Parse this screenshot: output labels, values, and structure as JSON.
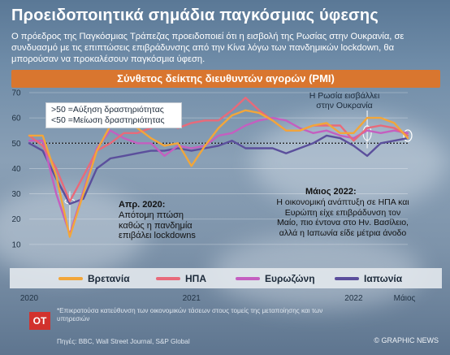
{
  "title": "Προειδοποιητικά σημάδια παγκόσμιας ύφεσης",
  "subtitle": "Ο πρόεδρος της Παγκόσμιας Τράπεζας προειδοποιεί ότι η εισβολή της Ρωσίας στην  Ουκρανία, σε συνδυασμό με τις επιπτώσεις επιβράδυνσης από την Κίνα λόγω των πανδημικών lockdown, θα μπορούσαν να προκαλέσουν παγκόσμια ύφεση.",
  "colors": {
    "uk": "#f2a63a",
    "us": "#e86a7a",
    "eu": "#c45fc0",
    "jp": "#5b4f9c",
    "banner": "#d9762f"
  },
  "annotations": {
    "threshold_up": ">50 =Αύξηση δραστηριότητας",
    "threshold_down": "<50 =Μείωση δραστηριότητας",
    "invasion": "Η Ρωσία εισβάλλει στην Ουκρανία",
    "apr2020_title": "Απρ. 2020:",
    "apr2020_body": "Απότομη πτώση καθώς η πανδημία επιβάλει lockdowns",
    "may2022_title": "Μάιος 2022:",
    "may2022_body": "Η οικονομική ανάπτυξη σε ΗΠΑ και Ευρώπη είχε επιβράδυνση τον Μαίο, πιο έντονα στο Ην. Βασίλειο, αλλά η Ιαπωνία είδε μέτρια άνοδο"
  },
  "footnote": "*Επικρατούσα κατεύθυνση των οικονομικών τάσεων στους τομείς της μεταποίησης και των υπηρεσιών",
  "source": "Πηγές: BBC, Wall Street Journal, S&P Global",
  "credit": "© GRAPHIC NEWS",
  "logo": "OT",
  "chart_data": {
    "type": "line",
    "title": "Σύνθετος δείκτης διευθυντών αγορών (PMI)",
    "ylim": [
      0,
      70
    ],
    "yticks": [
      10,
      20,
      30,
      40,
      50,
      60,
      70
    ],
    "xticks": [
      "2020",
      "2021",
      "2022",
      "Μάιος"
    ],
    "threshold": 50,
    "x": [
      "2020-01",
      "2020-02",
      "2020-03",
      "2020-04",
      "2020-05",
      "2020-06",
      "2020-07",
      "2020-08",
      "2020-09",
      "2020-10",
      "2020-11",
      "2020-12",
      "2021-01",
      "2021-02",
      "2021-03",
      "2021-04",
      "2021-05",
      "2021-06",
      "2021-07",
      "2021-08",
      "2021-09",
      "2021-10",
      "2021-11",
      "2021-12",
      "2022-01",
      "2022-02",
      "2022-03",
      "2022-04",
      "2022-05"
    ],
    "series": [
      {
        "name": "Βρετανία",
        "key": "uk",
        "values": [
          53,
          53,
          37,
          13,
          30,
          47,
          57,
          59,
          56,
          52,
          49,
          50,
          41,
          49,
          56,
          61,
          63,
          62,
          59,
          55,
          55,
          57,
          58,
          54,
          54,
          60,
          60,
          58,
          52
        ]
      },
      {
        "name": "ΗΠΑ",
        "key": "us",
        "values": [
          53,
          49,
          40,
          27,
          37,
          47,
          50,
          54,
          54,
          56,
          58,
          56,
          58,
          59,
          59,
          63,
          68,
          63,
          59,
          55,
          55,
          57,
          57,
          57,
          51,
          56,
          57,
          56,
          53
        ]
      },
      {
        "name": "Ευρωζώνη",
        "key": "eu",
        "values": [
          51,
          51,
          30,
          14,
          31,
          48,
          55,
          52,
          50,
          50,
          45,
          49,
          48,
          49,
          53,
          54,
          57,
          59,
          60,
          59,
          56,
          54,
          55,
          53,
          52,
          55,
          54,
          55,
          54
        ]
      },
      {
        "name": "Ιαπωνία",
        "key": "jp",
        "values": [
          50,
          47,
          36,
          26,
          28,
          40,
          44,
          45,
          46,
          47,
          47,
          48,
          47,
          48,
          49,
          51,
          48,
          48,
          48,
          46,
          48,
          50,
          53,
          52,
          49,
          45,
          50,
          51,
          52
        ]
      }
    ]
  }
}
